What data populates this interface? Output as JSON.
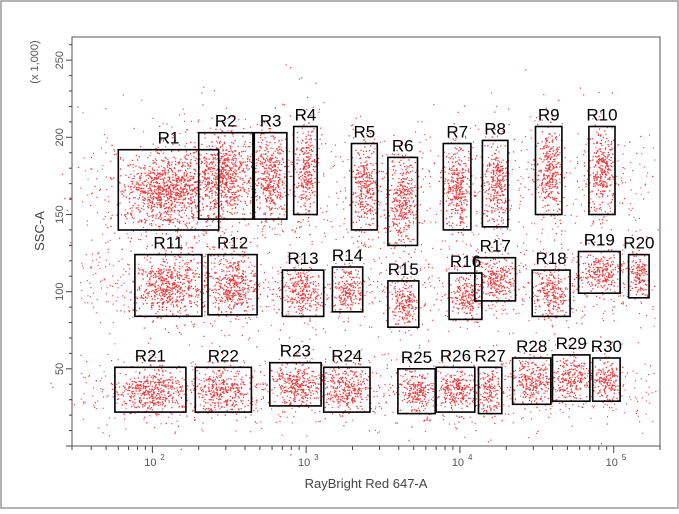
{
  "chart_data": {
    "type": "scatter",
    "xlabel": "RayBright Red 647-A",
    "ylabel": "SSC-A",
    "y_multiplier_label": "(x 1,000)",
    "x_scale": "log",
    "xlim": [
      30,
      200000
    ],
    "ylim": [
      0,
      265
    ],
    "x_ticks": [
      {
        "value": 100,
        "base": "10",
        "exp": "2"
      },
      {
        "value": 1000,
        "base": "10",
        "exp": "3"
      },
      {
        "value": 10000,
        "base": "10",
        "exp": "4"
      },
      {
        "value": 100000,
        "base": "10",
        "exp": "5"
      }
    ],
    "y_ticks": [
      {
        "value": 50,
        "label": "50"
      },
      {
        "value": 100,
        "label": "100"
      },
      {
        "value": 150,
        "label": "150"
      },
      {
        "value": 200,
        "label": "200"
      },
      {
        "value": 250,
        "label": "250"
      }
    ],
    "point_color": "#e31a1c",
    "gate_color": "#000000",
    "gates": [
      {
        "name": "R1",
        "x": [
          60,
          270
        ],
        "y": [
          140,
          192
        ],
        "center": [
          100,
          168
        ]
      },
      {
        "name": "R2",
        "x": [
          200,
          450
        ],
        "y": [
          147,
          203
        ],
        "center": [
          300,
          176
        ]
      },
      {
        "name": "R3",
        "x": [
          460,
          750
        ],
        "y": [
          147,
          203
        ],
        "center": [
          600,
          176
        ]
      },
      {
        "name": "R4",
        "x": [
          830,
          1180
        ],
        "y": [
          150,
          207
        ],
        "center": [
          1000,
          180
        ]
      },
      {
        "name": "R5",
        "x": [
          1970,
          2900
        ],
        "y": [
          140,
          196
        ],
        "center": [
          2400,
          168
        ]
      },
      {
        "name": "R6",
        "x": [
          3400,
          5300
        ],
        "y": [
          130,
          187
        ],
        "center": [
          4300,
          160
        ]
      },
      {
        "name": "R7",
        "x": [
          7800,
          11800
        ],
        "y": [
          140,
          196
        ],
        "center": [
          9700,
          168
        ]
      },
      {
        "name": "R8",
        "x": [
          14000,
          20500
        ],
        "y": [
          142,
          198
        ],
        "center": [
          17000,
          170
        ]
      },
      {
        "name": "R9",
        "x": [
          31000,
          46000
        ],
        "y": [
          150,
          207
        ],
        "center": [
          38000,
          180
        ]
      },
      {
        "name": "R10",
        "x": [
          69000,
          102000
        ],
        "y": [
          150,
          207
        ],
        "center": [
          84000,
          180
        ]
      },
      {
        "name": "R11",
        "x": [
          77000,
          210000
        ],
        "y": [
          84,
          124
        ],
        "center": [
          110,
          104
        ],
        "note": "x in data units is 77-210"
      },
      {
        "name": "R12",
        "x": [
          230,
          480
        ],
        "y": [
          85,
          124
        ],
        "center": [
          330,
          105
        ]
      },
      {
        "name": "R13",
        "x": [
          700,
          1300
        ],
        "y": [
          84,
          114
        ],
        "center": [
          950,
          100
        ]
      },
      {
        "name": "R14",
        "x": [
          1480,
          2330
        ],
        "y": [
          87,
          116
        ],
        "center": [
          1850,
          102
        ]
      },
      {
        "name": "R15",
        "x": [
          3400,
          5400
        ],
        "y": [
          77,
          107
        ],
        "center": [
          4300,
          92
        ]
      },
      {
        "name": "R16",
        "x": [
          8500,
          13900
        ],
        "y": [
          82,
          112
        ],
        "center": [
          10900,
          97
        ]
      },
      {
        "name": "R17",
        "x": [
          12500,
          23000
        ],
        "y": [
          94,
          122
        ],
        "center": [
          17500,
          108
        ]
      },
      {
        "name": "R18",
        "x": [
          29500,
          52000
        ],
        "y": [
          84,
          114
        ],
        "center": [
          39000,
          99
        ]
      },
      {
        "name": "R19",
        "x": [
          59000,
          110000
        ],
        "y": [
          99,
          126
        ],
        "center": [
          80000,
          112
        ]
      },
      {
        "name": "R20",
        "x": [
          125000,
          170000
        ],
        "y": [
          96,
          124
        ],
        "center": [
          145000,
          110
        ]
      },
      {
        "name": "R21",
        "x": [
          57000,
          165000
        ],
        "y": [
          22,
          51
        ],
        "center": [
          100,
          36
        ],
        "note": "x in data units is 57-165"
      },
      {
        "name": "R22",
        "x": [
          190,
          440
        ],
        "y": [
          22,
          51
        ],
        "center": [
          290,
          36
        ]
      },
      {
        "name": "R23",
        "x": [
          580,
          1250
        ],
        "y": [
          26,
          54
        ],
        "center": [
          850,
          40
        ]
      },
      {
        "name": "R24",
        "x": [
          1300,
          2600
        ],
        "y": [
          22,
          51
        ],
        "center": [
          1850,
          36
        ]
      },
      {
        "name": "R25",
        "x": [
          3950,
          6900
        ],
        "y": [
          21,
          50
        ],
        "center": [
          5200,
          35
        ]
      },
      {
        "name": "R26",
        "x": [
          7000,
          12500
        ],
        "y": [
          22,
          51
        ],
        "center": [
          9300,
          36
        ]
      },
      {
        "name": "R27",
        "x": [
          13200,
          18700
        ],
        "y": [
          21,
          51
        ],
        "center": [
          15700,
          36
        ]
      },
      {
        "name": "R28",
        "x": [
          22000,
          39000
        ],
        "y": [
          27,
          57
        ],
        "center": [
          29000,
          42
        ]
      },
      {
        "name": "R29",
        "x": [
          40000,
          70000
        ],
        "y": [
          29,
          59
        ],
        "center": [
          53000,
          44
        ]
      },
      {
        "name": "R30",
        "x": [
          73000,
          110000
        ],
        "y": [
          29,
          57
        ],
        "center": [
          90000,
          43
        ]
      }
    ]
  }
}
